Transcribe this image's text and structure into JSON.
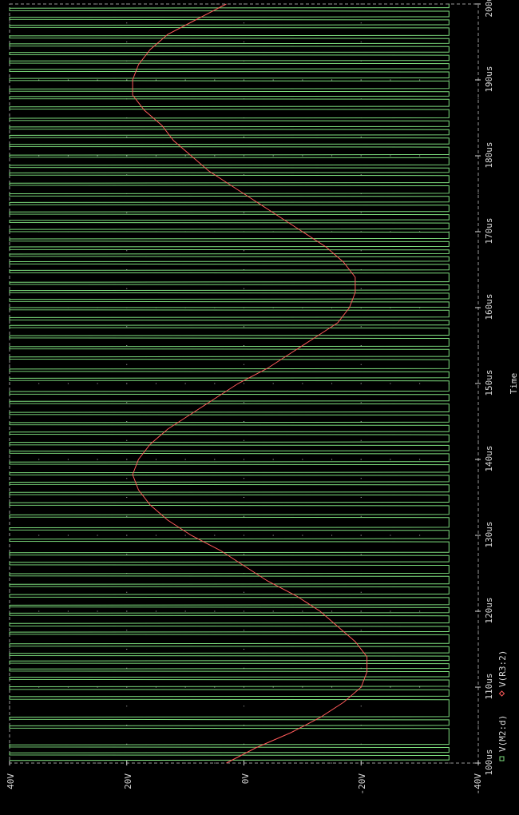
{
  "chart_data": {
    "type": "line",
    "orientation": "rotated-90-ccw",
    "xlabel": "Time",
    "x_unit": "us",
    "xlim": [
      100,
      200
    ],
    "x_ticks": [
      100,
      110,
      120,
      130,
      140,
      150,
      160,
      170,
      180,
      190,
      200
    ],
    "x_tick_labels": [
      "100us",
      "110us",
      "120us",
      "130us",
      "140us",
      "150us",
      "160us",
      "170us",
      "180us",
      "190us",
      "200us"
    ],
    "ylim": [
      -40,
      40
    ],
    "y_ticks": [
      40,
      20,
      0,
      -20,
      -40
    ],
    "y_tick_labels": [
      "40V",
      "20V",
      "0V",
      "-20V",
      "-40V"
    ],
    "grid": true,
    "legend_placement": "bottom-right",
    "series": [
      {
        "name": "V(M2:d)",
        "marker": "square",
        "color": "#7fe07f",
        "kind": "square-wave",
        "high": 40,
        "low": -35,
        "edges_us": [
          100.35,
          101.0,
          101.35,
          102.05,
          102.4,
          104.55,
          104.9,
          105.7,
          106.05,
          108.35,
          108.75,
          109.65,
          110.05,
          110.95,
          111.3,
          112.05,
          112.4,
          113.1,
          113.45,
          114.1,
          114.45,
          115.35,
          115.7,
          116.9,
          117.25,
          118.0,
          118.4,
          119.4,
          119.75,
          120.5,
          120.8,
          121.8,
          122.2,
          123.2,
          123.55,
          124.6,
          124.95,
          126.05,
          126.45,
          127.35,
          127.7,
          129.15,
          129.5,
          130.65,
          131.0,
          132.35,
          132.7,
          133.9,
          134.3,
          135.3,
          135.65,
          136.65,
          137.0,
          137.9,
          138.25,
          139.3,
          139.65,
          140.75,
          141.1,
          141.85,
          142.25,
          143.25,
          143.6,
          144.5,
          144.85,
          145.85,
          146.2,
          147.3,
          147.65,
          148.55,
          148.95,
          150.35,
          150.7,
          151.55,
          151.9,
          153.15,
          153.5,
          154.5,
          154.85,
          155.95,
          156.3,
          157.3,
          157.65,
          158.3,
          158.7,
          159.65,
          160.0,
          160.75,
          161.1,
          161.9,
          162.25,
          163.0,
          163.35,
          164.55,
          164.9,
          165.7,
          166.05,
          166.7,
          167.05,
          167.6,
          168.0,
          168.7,
          169.05,
          169.95,
          170.3,
          171.15,
          171.5,
          172.25,
          172.6,
          173.5,
          173.85,
          174.65,
          175.0,
          176.05,
          176.4,
          177.4,
          177.75,
          178.4,
          178.75,
          179.75,
          180.1,
          181.15,
          181.5,
          182.35,
          182.7,
          183.45,
          183.8,
          184.6,
          184.95,
          186.1,
          186.45,
          187.45,
          187.8,
          188.45,
          188.8,
          189.85,
          190.2,
          191.05,
          191.4,
          192.15,
          192.5,
          193.25,
          193.6,
          194.4,
          194.75,
          195.45,
          195.8,
          196.85,
          197.2,
          197.9,
          198.25,
          199.05,
          199.45
        ]
      },
      {
        "name": "V(R3:2)",
        "marker": "diamond",
        "color": "#ff5a5a",
        "kind": "sine-with-ripple",
        "x": [
          100,
          102,
          104,
          106,
          108,
          110,
          112,
          114,
          116,
          118,
          120,
          122,
          124,
          126,
          128,
          130,
          132,
          134,
          136,
          138,
          140,
          142,
          144,
          146,
          148,
          150,
          152,
          154,
          156,
          158,
          160,
          162,
          164,
          166,
          168,
          170,
          172,
          174,
          176,
          178,
          180,
          182,
          184,
          186,
          188,
          190,
          192,
          194,
          196,
          198,
          200
        ],
        "y": [
          3,
          -2,
          -8,
          -13,
          -17,
          -20,
          -21,
          -21,
          -19,
          -16,
          -13,
          -9,
          -4,
          0,
          4,
          9,
          13,
          16,
          18,
          19,
          18,
          16,
          13,
          9,
          5,
          1,
          -4,
          -8,
          -12,
          -16,
          -18,
          -19,
          -19,
          -17,
          -14,
          -10,
          -6,
          -2,
          2,
          6,
          9,
          12,
          14,
          17,
          19,
          19,
          18,
          16,
          13,
          8,
          3
        ]
      }
    ]
  }
}
